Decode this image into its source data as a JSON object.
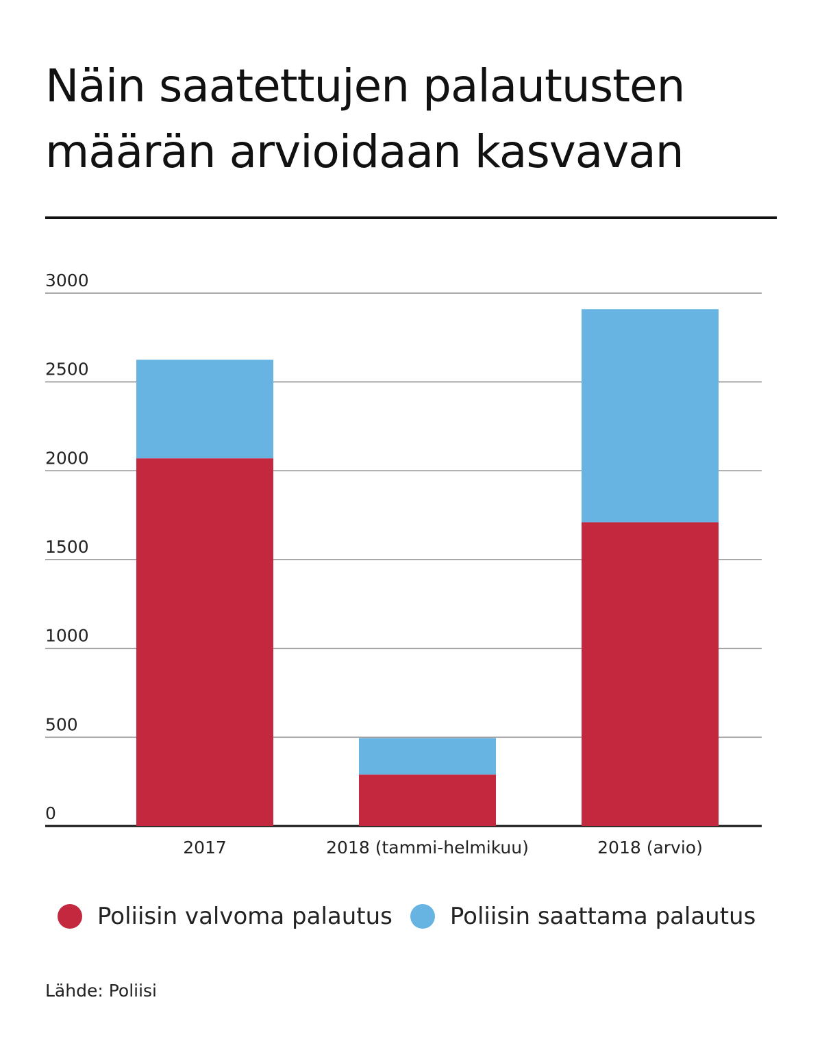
{
  "title": "Näin saatettujen palautusten määrän arvioidaan kasvavan",
  "source": "Lähde: Poliisi",
  "colors": {
    "valvoma": "#c4283f",
    "saattama": "#67b3e2",
    "grid": "#8c8c8c",
    "axis": "#111111"
  },
  "chart_data": {
    "type": "bar",
    "stacked": true,
    "categories": [
      "2017",
      "2018 (tammi-helmikuu)",
      "2018 (arvio)"
    ],
    "series": [
      {
        "name": "Poliisin valvoma palautus",
        "values": [
          2070,
          290,
          1710
        ]
      },
      {
        "name": "Poliisin saattama palautus",
        "values": [
          555,
          205,
          1200
        ]
      }
    ],
    "yticks": [
      0,
      500,
      1000,
      1500,
      2000,
      2500,
      3000
    ],
    "ylim": [
      0,
      3000
    ],
    "grid": true,
    "legend": "bottom"
  }
}
